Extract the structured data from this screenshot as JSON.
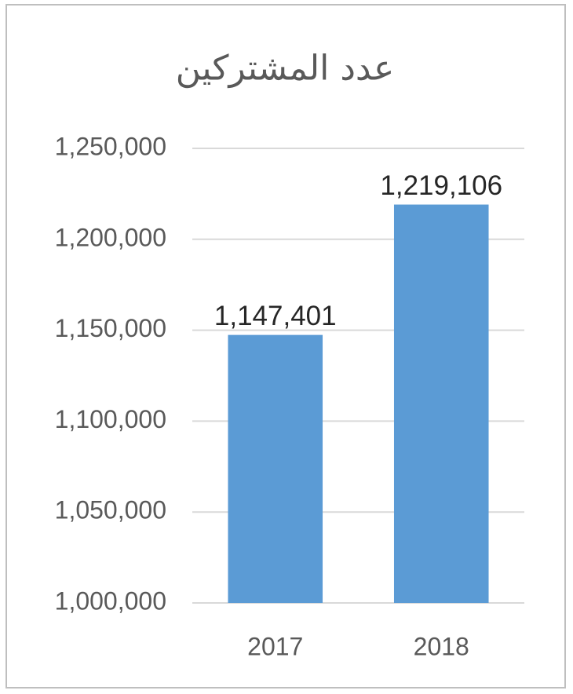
{
  "chart_data": {
    "type": "bar",
    "title": "عدد المشتركين",
    "categories": [
      "2017",
      "2018"
    ],
    "values": [
      1147401,
      1219106
    ],
    "value_labels": [
      "1,147,401",
      "1,219,106"
    ],
    "color": "#5b9bd5",
    "ylim": [
      1000000,
      1250000
    ],
    "yticks": [
      {
        "value": 1000000,
        "label": "1,000,000"
      },
      {
        "value": 1050000,
        "label": "1,050,000"
      },
      {
        "value": 1100000,
        "label": "1,100,000"
      },
      {
        "value": 1150000,
        "label": "1,150,000"
      },
      {
        "value": 1200000,
        "label": "1,200,000"
      },
      {
        "value": 1250000,
        "label": "1,250,000"
      }
    ],
    "grid": true
  }
}
